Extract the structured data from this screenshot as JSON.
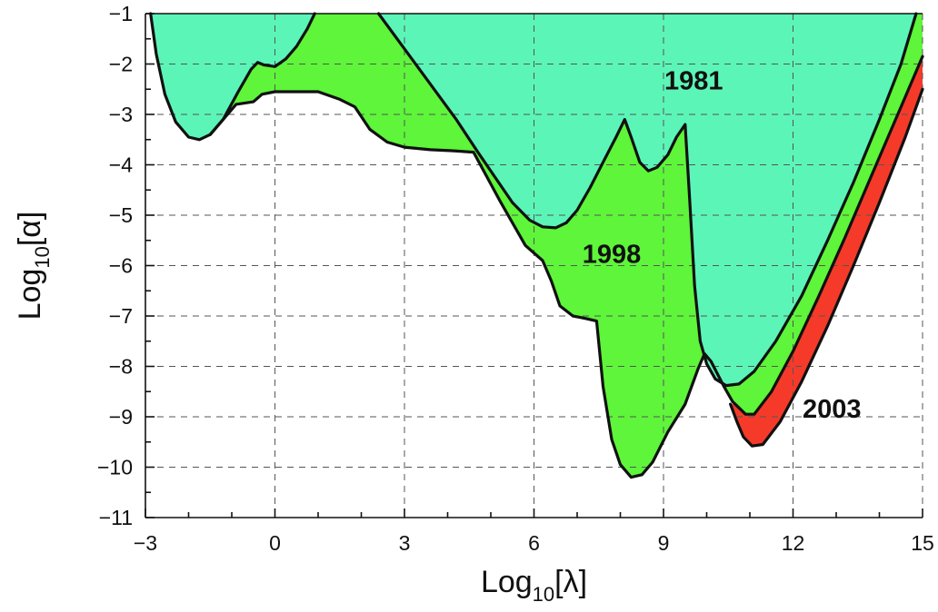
{
  "chart_data": {
    "type": "area",
    "title": "",
    "xlabel": {
      "base": "Log",
      "sub": "10",
      "arg": "[λ]"
    },
    "ylabel": {
      "base": "Log",
      "sub": "10",
      "arg": "[α]"
    },
    "xlim": [
      -3,
      15
    ],
    "ylim": [
      -11,
      -1
    ],
    "x_ticks": [
      -3,
      0,
      3,
      6,
      9,
      12,
      15
    ],
    "x_tick_labels": [
      "−3",
      "0",
      "3",
      "6",
      "9",
      "12",
      "15"
    ],
    "y_ticks": [
      -1,
      -2,
      -3,
      -4,
      -5,
      -6,
      -7,
      -8,
      -9,
      -10,
      -11
    ],
    "y_tick_labels": [
      "−1",
      "−2",
      "−3",
      "−4",
      "−5",
      "−6",
      "−7",
      "−8",
      "−9",
      "−10",
      "−11"
    ],
    "grid": true,
    "colors": {
      "1981": "#5cf5b8",
      "1998": "#5ef53a",
      "2003": "#f53a2a",
      "boundary": "#111111",
      "grid": "#555555"
    },
    "series": [
      {
        "name": "1981",
        "label_at": [
          9.7,
          -2.5
        ],
        "boundary": [
          [
            -2.88,
            -1.0
          ],
          [
            -2.75,
            -1.8
          ],
          [
            -2.55,
            -2.6
          ],
          [
            -2.3,
            -3.15
          ],
          [
            -2.0,
            -3.45
          ],
          [
            -1.75,
            -3.5
          ],
          [
            -1.5,
            -3.4
          ],
          [
            -1.2,
            -3.1
          ],
          [
            -0.85,
            -2.55
          ],
          [
            -0.55,
            -2.1
          ],
          [
            -0.4,
            -1.97
          ],
          [
            -0.25,
            -2.02
          ],
          [
            0.0,
            -2.05
          ],
          [
            0.25,
            -1.9
          ],
          [
            0.5,
            -1.65
          ],
          [
            0.75,
            -1.3
          ],
          [
            0.92,
            -1.0
          ]
        ],
        "boundary_2": [
          [
            2.4,
            -1.0
          ],
          [
            3.0,
            -1.7
          ],
          [
            3.6,
            -2.4
          ],
          [
            4.2,
            -3.1
          ],
          [
            4.7,
            -3.75
          ],
          [
            5.1,
            -4.25
          ],
          [
            5.5,
            -4.75
          ],
          [
            5.9,
            -5.1
          ],
          [
            6.2,
            -5.23
          ],
          [
            6.5,
            -5.25
          ],
          [
            6.75,
            -5.15
          ],
          [
            7.0,
            -4.9
          ],
          [
            7.3,
            -4.45
          ],
          [
            7.6,
            -3.95
          ],
          [
            7.9,
            -3.45
          ],
          [
            8.1,
            -3.1
          ],
          [
            8.25,
            -3.45
          ],
          [
            8.45,
            -3.95
          ],
          [
            8.65,
            -4.12
          ],
          [
            8.85,
            -4.05
          ],
          [
            9.1,
            -3.8
          ],
          [
            9.3,
            -3.45
          ],
          [
            9.5,
            -3.2
          ],
          [
            9.6,
            -4.6
          ],
          [
            9.72,
            -6.4
          ],
          [
            9.85,
            -7.5
          ],
          [
            10.0,
            -7.95
          ],
          [
            10.2,
            -8.25
          ],
          [
            10.45,
            -8.38
          ],
          [
            10.75,
            -8.35
          ],
          [
            11.1,
            -8.1
          ],
          [
            11.6,
            -7.5
          ],
          [
            12.2,
            -6.6
          ],
          [
            12.8,
            -5.5
          ],
          [
            13.4,
            -4.35
          ],
          [
            14.0,
            -3.1
          ],
          [
            14.5,
            -2.0
          ],
          [
            14.85,
            -1.0
          ]
        ]
      },
      {
        "name": "1998",
        "label_at": [
          7.8,
          -5.95
        ],
        "boundary": [
          [
            -1.5,
            -3.4
          ],
          [
            -0.9,
            -2.8
          ],
          [
            -0.5,
            -2.75
          ],
          [
            -0.3,
            -2.6
          ],
          [
            0.0,
            -2.55
          ],
          [
            0.5,
            -2.55
          ],
          [
            1.0,
            -2.55
          ],
          [
            1.5,
            -2.7
          ],
          [
            1.85,
            -2.85
          ],
          [
            2.2,
            -3.3
          ],
          [
            2.6,
            -3.55
          ],
          [
            3.0,
            -3.65
          ],
          [
            3.6,
            -3.7
          ],
          [
            4.1,
            -3.72
          ],
          [
            4.6,
            -3.75
          ],
          [
            5.2,
            -4.7
          ],
          [
            5.8,
            -5.6
          ],
          [
            6.2,
            -5.9
          ],
          [
            6.4,
            -6.3
          ],
          [
            6.6,
            -6.8
          ],
          [
            6.9,
            -7.0
          ],
          [
            7.2,
            -7.05
          ],
          [
            7.45,
            -7.1
          ],
          [
            7.6,
            -8.4
          ],
          [
            7.8,
            -9.45
          ],
          [
            8.0,
            -9.95
          ],
          [
            8.25,
            -10.2
          ],
          [
            8.5,
            -10.15
          ],
          [
            8.75,
            -9.9
          ],
          [
            9.1,
            -9.3
          ],
          [
            9.5,
            -8.75
          ],
          [
            9.8,
            -8.05
          ],
          [
            9.95,
            -7.75
          ],
          [
            10.1,
            -7.9
          ],
          [
            10.4,
            -8.4
          ],
          [
            10.6,
            -8.7
          ],
          [
            10.9,
            -8.95
          ],
          [
            11.1,
            -8.95
          ],
          [
            11.5,
            -8.5
          ],
          [
            12.0,
            -7.7
          ],
          [
            12.6,
            -6.6
          ],
          [
            13.2,
            -5.45
          ],
          [
            13.8,
            -4.25
          ],
          [
            14.5,
            -2.85
          ],
          [
            15.0,
            -1.85
          ]
        ]
      },
      {
        "name": "2003",
        "label_at": [
          12.9,
          -9.02
        ],
        "boundary": [
          [
            10.55,
            -8.75
          ],
          [
            10.7,
            -9.1
          ],
          [
            10.85,
            -9.4
          ],
          [
            11.05,
            -9.58
          ],
          [
            11.3,
            -9.55
          ],
          [
            11.7,
            -9.1
          ],
          [
            12.2,
            -8.3
          ],
          [
            12.8,
            -7.2
          ],
          [
            13.4,
            -6.0
          ],
          [
            14.0,
            -4.75
          ],
          [
            14.6,
            -3.45
          ],
          [
            15.0,
            -2.5
          ]
        ]
      }
    ]
  }
}
